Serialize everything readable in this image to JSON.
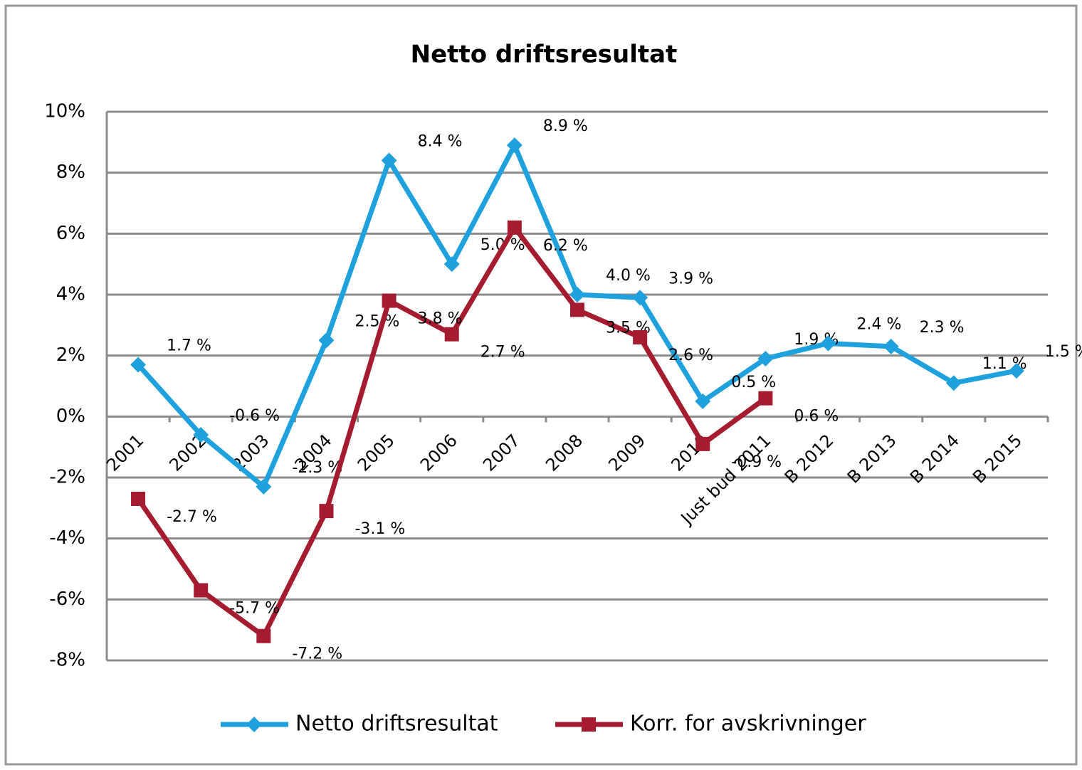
{
  "chart_data": {
    "type": "line",
    "title": "Netto driftsresultat",
    "categories": [
      "2001",
      "2002",
      "2003",
      "2004",
      "2005",
      "2006",
      "2007",
      "2008",
      "2009",
      "2010",
      "Just bud 2011",
      "B 2012",
      "B 2013",
      "B 2014",
      "B 2015"
    ],
    "series": [
      {
        "name": "Netto driftsresultat",
        "color": "#1ea1dc",
        "marker": "diamond",
        "values": [
          1.7,
          -0.6,
          -2.3,
          2.5,
          8.4,
          5.0,
          8.9,
          4.0,
          3.9,
          0.5,
          1.9,
          2.4,
          2.3,
          1.1,
          1.5
        ],
        "value_labels": [
          "1.7 %",
          "-0.6 %",
          "-2.3 %",
          "2.5 %",
          "8.4 %",
          "5.0 %",
          "8.9 %",
          "4.0 %",
          "3.9 %",
          "0.5 %",
          "1.9 %",
          "2.4 %",
          "2.3 %",
          "1.1 %",
          "1.5 %"
        ]
      },
      {
        "name": "Korr. for avskrivninger",
        "color": "#a51c30",
        "marker": "square",
        "values": [
          -2.7,
          -5.7,
          -7.2,
          -3.1,
          3.8,
          2.7,
          6.2,
          3.5,
          2.6,
          -0.9,
          0.6,
          null,
          null,
          null,
          null
        ],
        "value_labels": [
          "-2.7 %",
          "-5.7 %",
          "-7.2 %",
          "-3.1 %",
          "3.8 %",
          "2.7 %",
          "6.2 %",
          "3.5 %",
          "2.6 %",
          "-0.9 %",
          "0.6 %",
          null,
          null,
          null,
          null
        ]
      }
    ],
    "ylim": [
      -8,
      10
    ],
    "yticks": [
      {
        "value": -8,
        "label": "-8%"
      },
      {
        "value": -6,
        "label": "-6%"
      },
      {
        "value": -4,
        "label": "-4%"
      },
      {
        "value": -2,
        "label": "-2%"
      },
      {
        "value": 0,
        "label": "0%"
      },
      {
        "value": 2,
        "label": "2%"
      },
      {
        "value": 4,
        "label": "4%"
      },
      {
        "value": 6,
        "label": "6%"
      },
      {
        "value": 8,
        "label": "8%"
      },
      {
        "value": 10,
        "label": "10%"
      }
    ],
    "grid": true,
    "legend": "bottom"
  }
}
